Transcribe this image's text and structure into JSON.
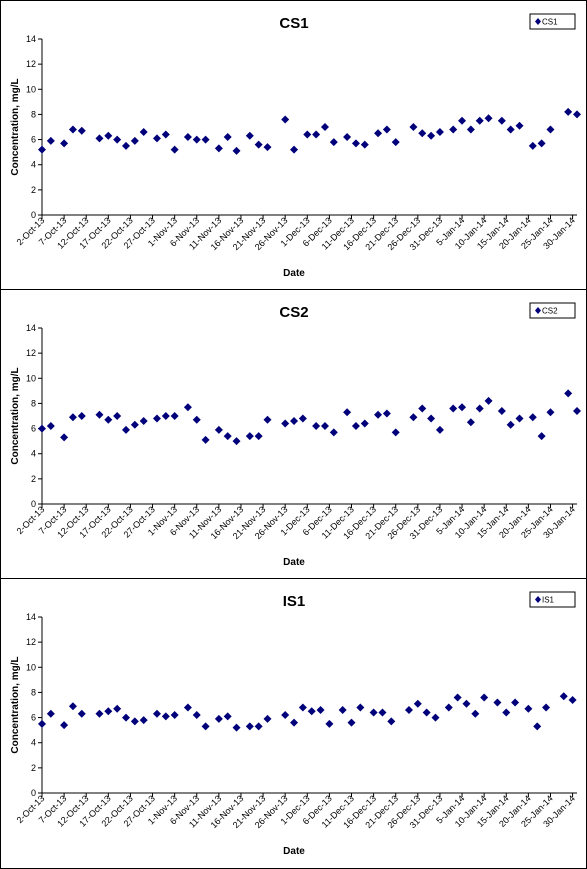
{
  "chart_data": [
    {
      "type": "scatter",
      "title": "CS1",
      "xlabel": "Date",
      "ylabel": "Concentration, mg/L",
      "ylim": [
        0,
        14
      ],
      "yticks": [
        "0",
        "2",
        "4",
        "6",
        "8",
        "10",
        "12",
        "14"
      ],
      "xlim": [
        "2-Oct-13",
        "31-Jan-14"
      ],
      "xticks": [
        "2-Oct-13",
        "7-Oct-13",
        "12-Oct-13",
        "17-Oct-13",
        "22-Oct-13",
        "27-Oct-13",
        "1-Nov-13",
        "6-Nov-13",
        "11-Nov-13",
        "16-Nov-13",
        "21-Nov-13",
        "26-Nov-13",
        "1-Dec-13",
        "6-Dec-13",
        "11-Dec-13",
        "16-Dec-13",
        "21-Dec-13",
        "26-Dec-13",
        "31-Dec-13",
        "5-Jan-14",
        "10-Jan-14",
        "15-Jan-14",
        "20-Jan-14",
        "25-Jan-14",
        "30-Jan-14"
      ],
      "legend": {
        "label": "CS1",
        "position": "top-right"
      },
      "color": "#00007a",
      "x": [
        "2-Oct-13",
        "4-Oct-13",
        "7-Oct-13",
        "9-Oct-13",
        "11-Oct-13",
        "15-Oct-13",
        "17-Oct-13",
        "19-Oct-13",
        "21-Oct-13",
        "23-Oct-13",
        "25-Oct-13",
        "28-Oct-13",
        "30-Oct-13",
        "1-Nov-13",
        "4-Nov-13",
        "6-Nov-13",
        "8-Nov-13",
        "11-Nov-13",
        "13-Nov-13",
        "15-Nov-13",
        "18-Nov-13",
        "20-Nov-13",
        "22-Nov-13",
        "26-Nov-13",
        "28-Nov-13",
        "1-Dec-13",
        "3-Dec-13",
        "5-Dec-13",
        "7-Dec-13",
        "10-Dec-13",
        "12-Dec-13",
        "14-Dec-13",
        "17-Dec-13",
        "19-Dec-13",
        "21-Dec-13",
        "25-Dec-13",
        "27-Dec-13",
        "29-Dec-13",
        "31-Dec-13",
        "3-Jan-14",
        "5-Jan-14",
        "7-Jan-14",
        "9-Jan-14",
        "11-Jan-14",
        "14-Jan-14",
        "16-Jan-14",
        "18-Jan-14",
        "21-Jan-14",
        "23-Jan-14",
        "25-Jan-14",
        "29-Jan-14",
        "31-Jan-14"
      ],
      "y": [
        5.2,
        5.9,
        5.7,
        6.8,
        6.7,
        6.1,
        6.3,
        6.0,
        5.5,
        5.9,
        6.6,
        6.1,
        6.4,
        5.2,
        6.2,
        6.0,
        6.0,
        5.3,
        6.2,
        5.1,
        6.3,
        5.6,
        5.4,
        7.6,
        5.2,
        6.4,
        6.4,
        7.0,
        5.8,
        6.2,
        5.7,
        5.6,
        6.5,
        6.8,
        5.8,
        7.0,
        6.5,
        6.3,
        6.6,
        6.8,
        7.5,
        6.8,
        7.5,
        7.7,
        7.5,
        6.8,
        7.1,
        5.5,
        5.7,
        6.8,
        8.2,
        8.0
      ]
    },
    {
      "type": "scatter",
      "title": "CS2",
      "xlabel": "Date",
      "ylabel": "Concentration, mg/L",
      "ylim": [
        0,
        14
      ],
      "yticks": [
        "0",
        "2",
        "4",
        "6",
        "8",
        "10",
        "12",
        "14"
      ],
      "xlim": [
        "2-Oct-13",
        "31-Jan-14"
      ],
      "xticks": [
        "2-Oct-13",
        "7-Oct-13",
        "12-Oct-13",
        "17-Oct-13",
        "22-Oct-13",
        "27-Oct-13",
        "1-Nov-13",
        "6-Nov-13",
        "11-Nov-13",
        "16-Nov-13",
        "21-Nov-13",
        "26-Nov-13",
        "1-Dec-13",
        "6-Dec-13",
        "11-Dec-13",
        "16-Dec-13",
        "21-Dec-13",
        "26-Dec-13",
        "31-Dec-13",
        "5-Jan-14",
        "10-Jan-14",
        "15-Jan-14",
        "20-Jan-14",
        "25-Jan-14",
        "30-Jan-14"
      ],
      "legend": {
        "label": "CS2",
        "position": "top-right"
      },
      "color": "#00007a",
      "x": [
        "2-Oct-13",
        "4-Oct-13",
        "7-Oct-13",
        "9-Oct-13",
        "11-Oct-13",
        "15-Oct-13",
        "17-Oct-13",
        "19-Oct-13",
        "21-Oct-13",
        "23-Oct-13",
        "25-Oct-13",
        "28-Oct-13",
        "30-Oct-13",
        "1-Nov-13",
        "4-Nov-13",
        "6-Nov-13",
        "8-Nov-13",
        "11-Nov-13",
        "13-Nov-13",
        "15-Nov-13",
        "18-Nov-13",
        "20-Nov-13",
        "22-Nov-13",
        "26-Nov-13",
        "28-Nov-13",
        "30-Nov-13",
        "3-Dec-13",
        "5-Dec-13",
        "7-Dec-13",
        "10-Dec-13",
        "12-Dec-13",
        "14-Dec-13",
        "17-Dec-13",
        "19-Dec-13",
        "21-Dec-13",
        "25-Dec-13",
        "27-Dec-13",
        "29-Dec-13",
        "31-Dec-13",
        "3-Jan-14",
        "5-Jan-14",
        "7-Jan-14",
        "9-Jan-14",
        "11-Jan-14",
        "14-Jan-14",
        "16-Jan-14",
        "18-Jan-14",
        "21-Jan-14",
        "23-Jan-14",
        "25-Jan-14",
        "29-Jan-14",
        "31-Jan-14"
      ],
      "y": [
        6.0,
        6.2,
        5.3,
        6.9,
        7.0,
        7.1,
        6.7,
        7.0,
        5.9,
        6.3,
        6.6,
        6.8,
        7.0,
        7.0,
        7.7,
        6.7,
        5.1,
        5.9,
        5.4,
        5.0,
        5.4,
        5.4,
        6.7,
        6.4,
        6.6,
        6.8,
        6.2,
        6.2,
        5.7,
        7.3,
        6.2,
        6.4,
        7.1,
        7.2,
        5.7,
        6.9,
        7.6,
        6.8,
        5.9,
        7.6,
        7.7,
        6.5,
        7.6,
        8.2,
        7.4,
        6.3,
        6.8,
        6.9,
        5.4,
        7.3,
        8.8,
        7.4
      ]
    },
    {
      "type": "scatter",
      "title": "IS1",
      "xlabel": "Date",
      "ylabel": "Concentration, mg/L",
      "ylim": [
        0,
        14
      ],
      "yticks": [
        "0",
        "2",
        "4",
        "6",
        "8",
        "10",
        "12",
        "14"
      ],
      "xlim": [
        "2-Oct-13",
        "31-Jan-14"
      ],
      "xticks": [
        "2-Oct-13",
        "7-Oct-13",
        "12-Oct-13",
        "17-Oct-13",
        "22-Oct-13",
        "27-Oct-13",
        "1-Nov-13",
        "6-Nov-13",
        "11-Nov-13",
        "16-Nov-13",
        "21-Nov-13",
        "26-Nov-13",
        "1-Dec-13",
        "6-Dec-13",
        "11-Dec-13",
        "16-Dec-13",
        "21-Dec-13",
        "26-Dec-13",
        "31-Dec-13",
        "5-Jan-14",
        "10-Jan-14",
        "15-Jan-14",
        "20-Jan-14",
        "25-Jan-14",
        "30-Jan-14"
      ],
      "legend": {
        "label": "IS1",
        "position": "top-right"
      },
      "color": "#00007a",
      "x": [
        "2-Oct-13",
        "4-Oct-13",
        "7-Oct-13",
        "9-Oct-13",
        "11-Oct-13",
        "15-Oct-13",
        "17-Oct-13",
        "19-Oct-13",
        "21-Oct-13",
        "23-Oct-13",
        "25-Oct-13",
        "28-Oct-13",
        "30-Oct-13",
        "1-Nov-13",
        "4-Nov-13",
        "6-Nov-13",
        "8-Nov-13",
        "11-Nov-13",
        "13-Nov-13",
        "15-Nov-13",
        "18-Nov-13",
        "20-Nov-13",
        "22-Nov-13",
        "26-Nov-13",
        "28-Nov-13",
        "30-Nov-13",
        "2-Dec-13",
        "4-Dec-13",
        "6-Dec-13",
        "9-Dec-13",
        "11-Dec-13",
        "13-Dec-13",
        "16-Dec-13",
        "18-Dec-13",
        "20-Dec-13",
        "24-Dec-13",
        "26-Dec-13",
        "28-Dec-13",
        "30-Dec-13",
        "2-Jan-14",
        "4-Jan-14",
        "6-Jan-14",
        "8-Jan-14",
        "10-Jan-14",
        "13-Jan-14",
        "15-Jan-14",
        "17-Jan-14",
        "20-Jan-14",
        "22-Jan-14",
        "24-Jan-14",
        "28-Jan-14",
        "30-Jan-14"
      ],
      "y": [
        5.5,
        6.3,
        5.4,
        6.9,
        6.3,
        6.3,
        6.5,
        6.7,
        6.0,
        5.7,
        5.8,
        6.3,
        6.1,
        6.2,
        6.8,
        6.2,
        5.3,
        5.9,
        6.1,
        5.2,
        5.3,
        5.3,
        5.9,
        6.2,
        5.6,
        6.8,
        6.5,
        6.6,
        5.5,
        6.6,
        5.6,
        6.8,
        6.4,
        6.4,
        5.7,
        6.6,
        7.1,
        6.4,
        6.0,
        6.8,
        7.6,
        7.1,
        6.3,
        7.6,
        7.2,
        6.4,
        7.2,
        6.7,
        5.3,
        6.8,
        7.7,
        7.4
      ]
    }
  ]
}
